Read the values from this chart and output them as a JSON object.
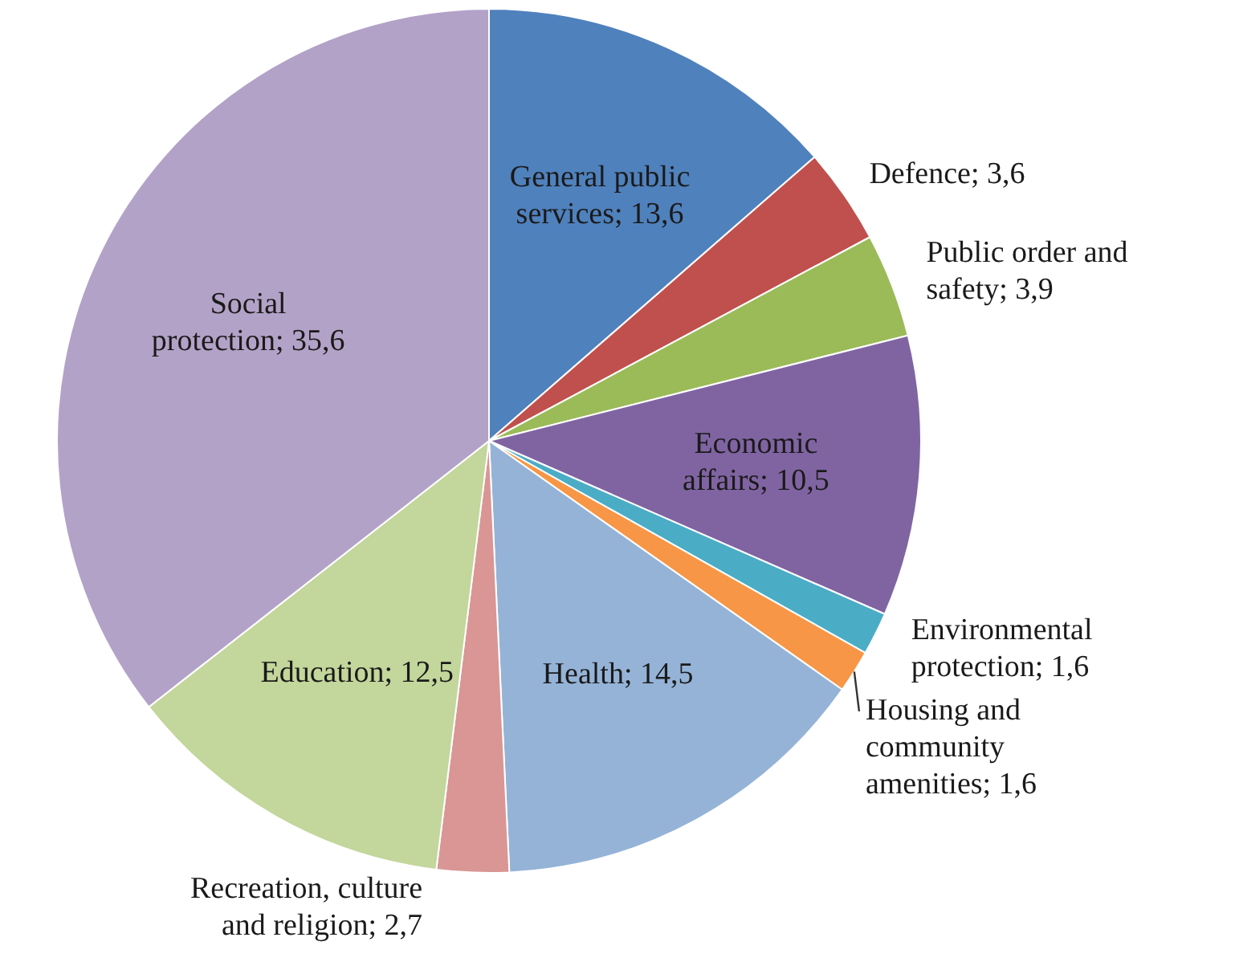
{
  "chart_data": {
    "type": "pie",
    "categories": [
      "General public services",
      "Defence",
      "Public order and safety",
      "Economic affairs",
      "Environmental protection",
      "Housing and community amenities",
      "Health",
      "Recreation, culture and religion",
      "Education",
      "Social protection"
    ],
    "values": [
      13.6,
      3.6,
      3.9,
      10.5,
      1.6,
      1.6,
      14.5,
      2.7,
      12.5,
      35.6
    ],
    "colors": [
      "#4f81bd",
      "#c0504d",
      "#9bbb59",
      "#8064a2",
      "#4bacc6",
      "#f79646",
      "#95b3d7",
      "#d99694",
      "#c3d69b",
      "#b3a2c7"
    ],
    "value_labels": [
      "13,6",
      "3,6",
      "3,9",
      "10,5",
      "1,6",
      "1,6",
      "14,5",
      "2,7",
      "12,5",
      "35,6"
    ],
    "legend": false
  }
}
